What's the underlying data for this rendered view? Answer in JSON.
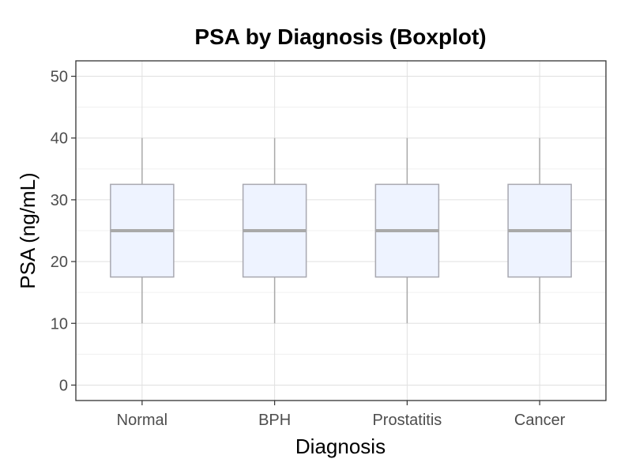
{
  "chart_data": {
    "type": "boxplot",
    "title": "PSA by Diagnosis (Boxplot)",
    "xlabel": "Diagnosis",
    "ylabel": "PSA (ng/mL)",
    "categories": [
      "Normal",
      "BPH",
      "Prostatitis",
      "Cancer"
    ],
    "boxes": [
      {
        "category": "Normal",
        "min": 10,
        "q1": 17.5,
        "median": 25,
        "q3": 32.5,
        "max": 40
      },
      {
        "category": "BPH",
        "min": 10,
        "q1": 17.5,
        "median": 25,
        "q3": 32.5,
        "max": 40
      },
      {
        "category": "Prostatitis",
        "min": 10,
        "q1": 17.5,
        "median": 25,
        "q3": 32.5,
        "max": 40
      },
      {
        "category": "Cancer",
        "min": 10,
        "q1": 17.5,
        "median": 25,
        "q3": 32.5,
        "max": 40
      }
    ],
    "ylim": [
      -2.5,
      52.5
    ],
    "yticks": [
      0,
      10,
      20,
      30,
      40,
      50
    ],
    "ytick_labels": [
      "0",
      "10",
      "20",
      "30",
      "40",
      "50"
    ],
    "grid": true,
    "colors": {
      "box_fill": "#eef3ff",
      "box_stroke": "#a8a8b0",
      "median": "#a9a9a9",
      "whisker": "#a9a9a9",
      "grid_major": "#e0e0e0",
      "grid_minor": "#f0f0f0",
      "panel_border": "#333333"
    }
  }
}
